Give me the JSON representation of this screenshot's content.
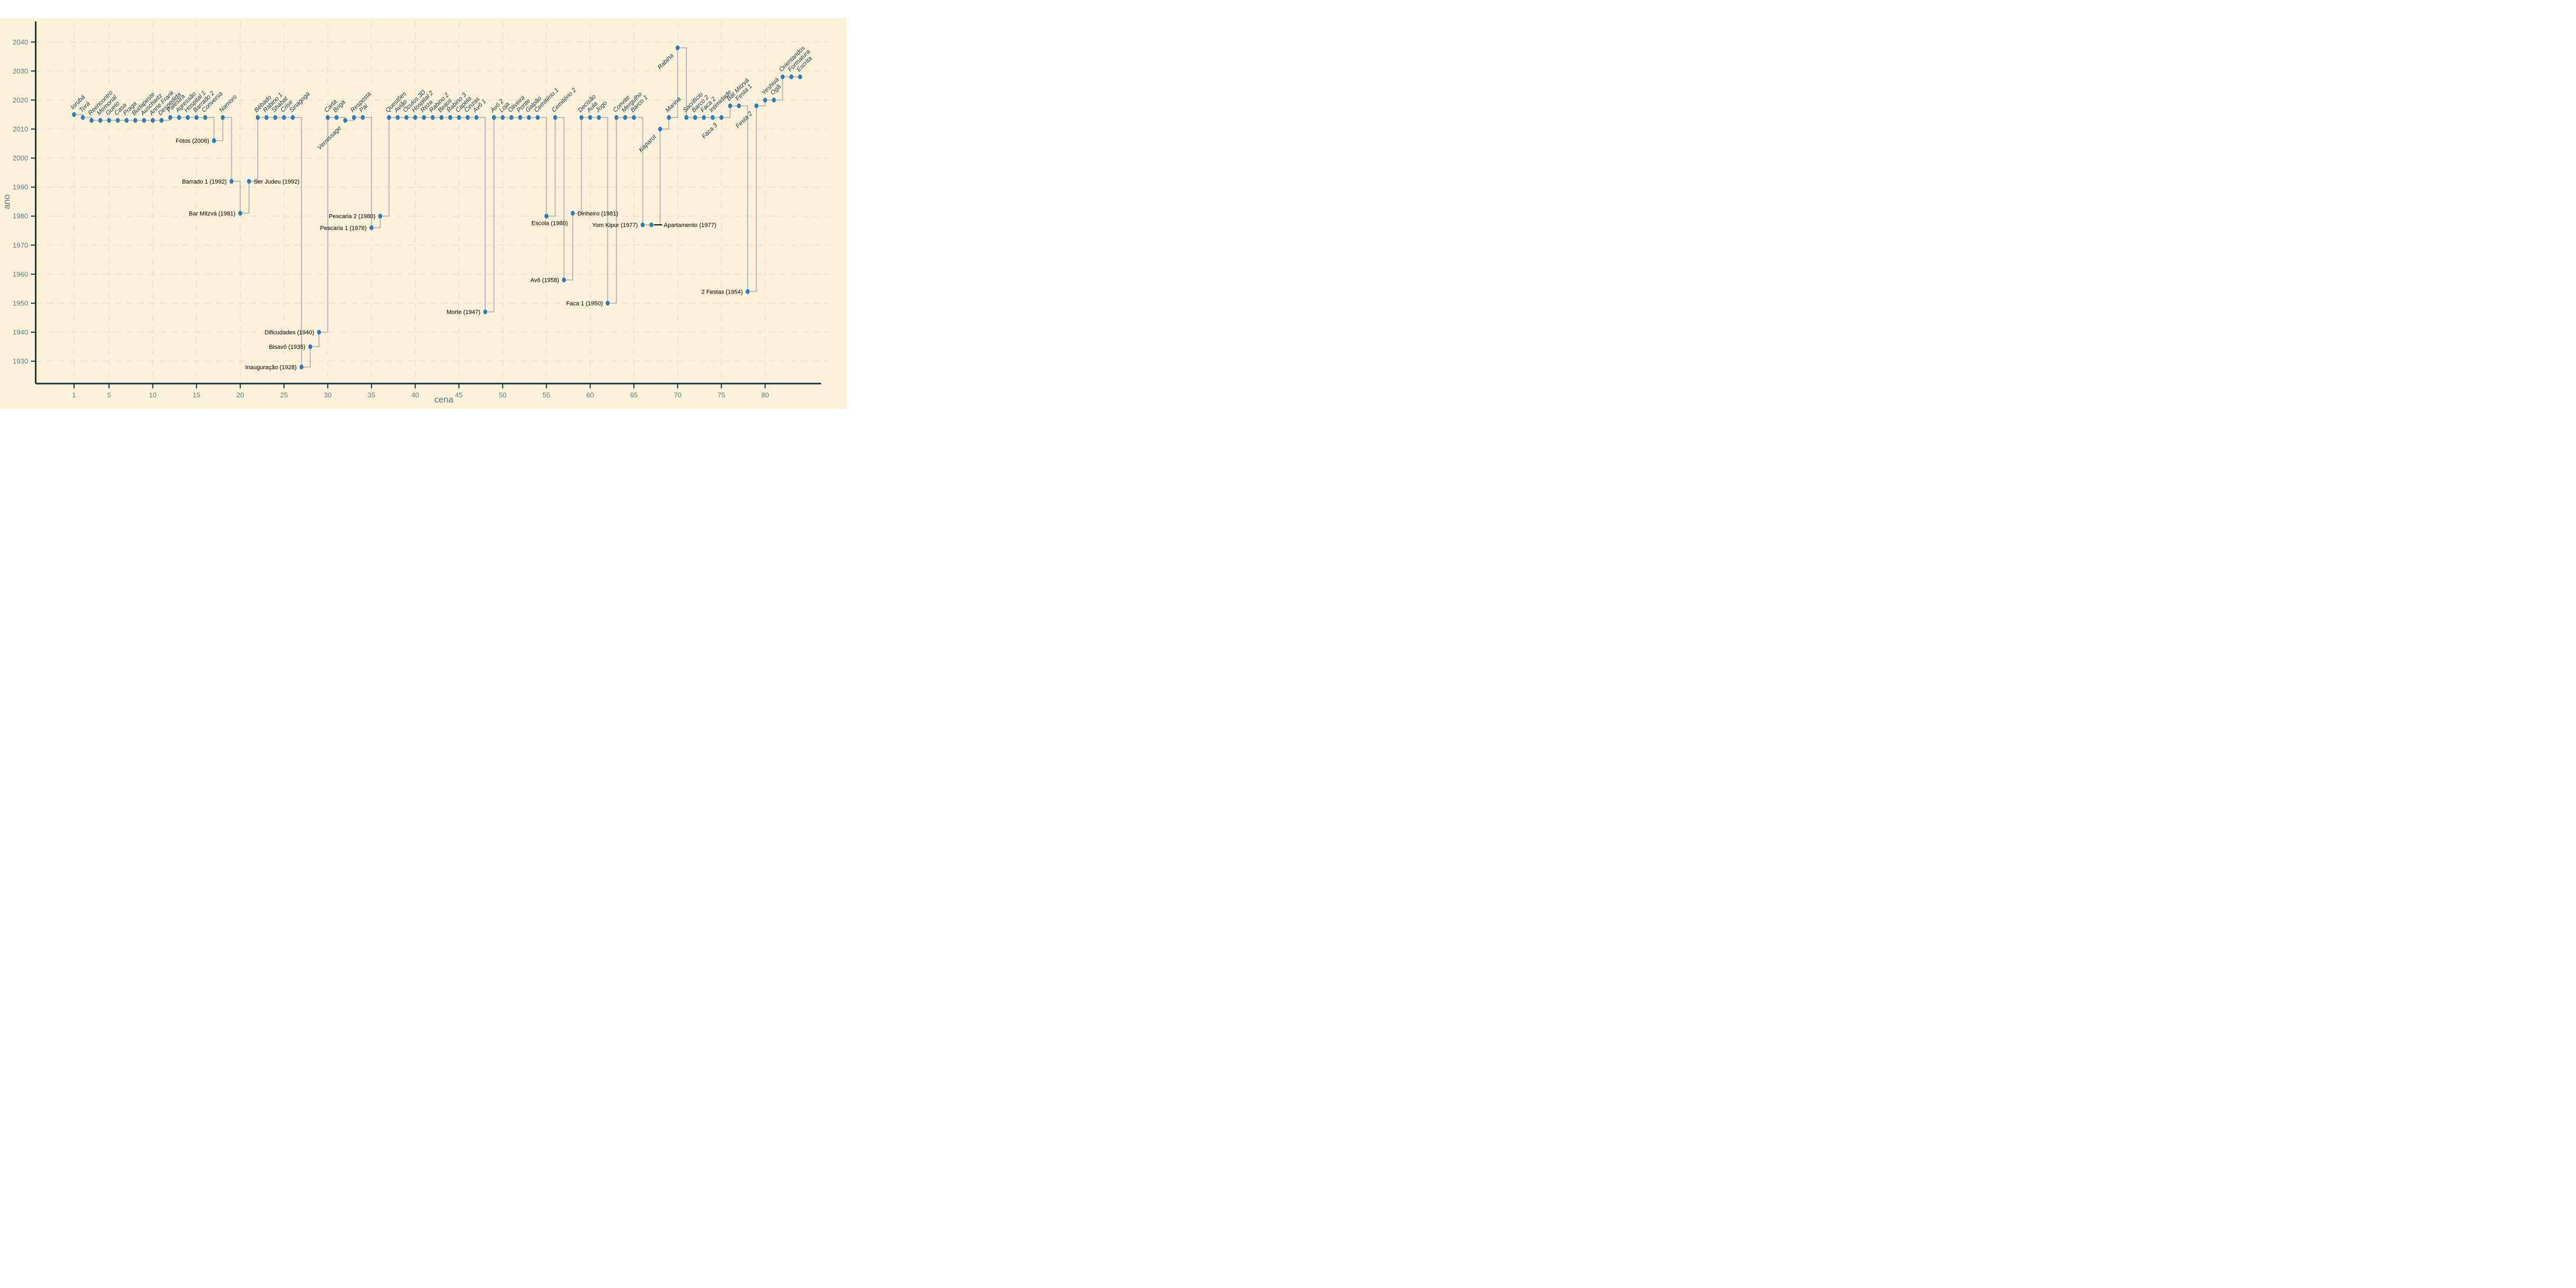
{
  "axes": {
    "x_title": "cena",
    "y_title": "ano"
  },
  "colors": {
    "page_background": "#ffffff",
    "panel_background": "#faf1d8",
    "gridline": "#e7e1cd",
    "axis_line": "#16384a",
    "tick_label": "#5f7d8c",
    "axis_title": "#567682",
    "point": "#2b7cbd",
    "step_line": "#b9b9b9",
    "scene_label": "#14384d",
    "annotation_text": "#000000"
  },
  "chart_data": {
    "type": "scatter",
    "subtype": "step-after-connected-scatter",
    "title": "",
    "xlabel": "cena",
    "ylabel": "ano",
    "xlim": [
      -1.5,
      88
    ],
    "ylim": [
      1925,
      2045
    ],
    "grid": true,
    "grid_style": "dashed",
    "legend": "none",
    "x_ticks": [
      1,
      5,
      10,
      15,
      20,
      25,
      30,
      35,
      40,
      45,
      50,
      55,
      60,
      65,
      70,
      75,
      80
    ],
    "y_ticks": [
      1930,
      1940,
      1950,
      1960,
      1970,
      1980,
      1990,
      2000,
      2010,
      2020,
      2030,
      2040
    ],
    "annotation_format": "label (year)",
    "label_placement_legend": {
      "diag": "italic label rotated 45deg above-right of point, no year shown",
      "diagDown": "italic label rotated 45deg below-left of point, no year shown",
      "left": "black 'label (year)' text left of point",
      "right": "black 'label (year)' text right of point",
      "below": "black 'label (year)' text centered below point",
      "rightLeader": "black 'label (year)' text right of point with black leader line"
    },
    "points": [
      {
        "x": 1,
        "label": "Iorubá",
        "year": 2015,
        "anno": "diag"
      },
      {
        "x": 2,
        "label": "Torá",
        "year": 2014,
        "anno": "diag"
      },
      {
        "x": 3,
        "label": "Reencontro",
        "year": 2013,
        "anno": "diag"
      },
      {
        "x": 4,
        "label": "Memorial",
        "year": 2013,
        "anno": "diag"
      },
      {
        "x": 5,
        "label": "Gueto",
        "year": 2013,
        "anno": "diag"
      },
      {
        "x": 6,
        "label": "Casa",
        "year": 2013,
        "anno": "diag"
      },
      {
        "x": 7,
        "label": "Praga",
        "year": 2013,
        "anno": "diag"
      },
      {
        "x": 8,
        "label": "Budapeste",
        "year": 2013,
        "anno": "diag"
      },
      {
        "x": 9,
        "label": "Auschwitz",
        "year": 2013,
        "anno": "diag"
      },
      {
        "x": 10,
        "label": "Anne Frank",
        "year": 2013,
        "anno": "diag"
      },
      {
        "x": 11,
        "label": "Despedida",
        "year": 2013,
        "anno": "diag"
      },
      {
        "x": 12,
        "label": "Palestra",
        "year": 2014,
        "anno": "diag"
      },
      {
        "x": 13,
        "label": "Agressão",
        "year": 2014,
        "anno": "diag"
      },
      {
        "x": 14,
        "label": "Hospital 1",
        "year": 2014,
        "anno": "diag"
      },
      {
        "x": 15,
        "label": "Barrado 2",
        "year": 2014,
        "anno": "diag"
      },
      {
        "x": 16,
        "label": "Conversa",
        "year": 2014,
        "anno": "diag"
      },
      {
        "x": 17,
        "label": "Fotos",
        "year": 2006,
        "anno": "left"
      },
      {
        "x": 18,
        "label": "Namoro",
        "year": 2014,
        "anno": "diag"
      },
      {
        "x": 19,
        "label": "Barrado 1",
        "year": 1992,
        "anno": "left"
      },
      {
        "x": 20,
        "label": "Bar Mitzvá",
        "year": 1981,
        "anno": "left"
      },
      {
        "x": 21,
        "label": "Ser Judeu",
        "year": 1992,
        "anno": "right"
      },
      {
        "x": 22,
        "label": "Bêbado",
        "year": 2014,
        "anno": "diag"
      },
      {
        "x": 23,
        "label": "Rabino 1",
        "year": 2014,
        "anno": "diag"
      },
      {
        "x": 24,
        "label": "Shabat",
        "year": 2014,
        "anno": "diag"
      },
      {
        "x": 25,
        "label": "Crise",
        "year": 2014,
        "anno": "diag"
      },
      {
        "x": 26,
        "label": "Sinagoga",
        "year": 2014,
        "anno": "diag"
      },
      {
        "x": 27,
        "label": "Inauguração",
        "year": 1928,
        "anno": "left"
      },
      {
        "x": 28,
        "label": "Bisavô",
        "year": 1935,
        "anno": "left"
      },
      {
        "x": 29,
        "label": "Dificudades",
        "year": 1940,
        "anno": "left"
      },
      {
        "x": 30,
        "label": "Carta",
        "year": 2014,
        "anno": "diag"
      },
      {
        "x": 31,
        "label": "Briga",
        "year": 2014,
        "anno": "diag"
      },
      {
        "x": 32,
        "label": "Vernissage",
        "year": 2013,
        "anno": "diagDown"
      },
      {
        "x": 33,
        "label": "Resposta",
        "year": 2014,
        "anno": "diag"
      },
      {
        "x": 34,
        "label": "Pai",
        "year": 2014,
        "anno": "diag"
      },
      {
        "x": 35,
        "label": "Pescaria 1",
        "year": 1976,
        "anno": "left"
      },
      {
        "x": 36,
        "label": "Pescaria 2",
        "year": 1980,
        "anno": "left"
      },
      {
        "x": 37,
        "label": "Questões",
        "year": 2014,
        "anno": "diag"
      },
      {
        "x": 38,
        "label": "Avião",
        "year": 2014,
        "anno": "diag"
      },
      {
        "x": 39,
        "label": "Óculos 3D",
        "year": 2014,
        "anno": "diag"
      },
      {
        "x": 40,
        "label": "Hospital 2",
        "year": 2014,
        "anno": "diag"
      },
      {
        "x": 41,
        "label": "Reza",
        "year": 2014,
        "anno": "diag"
      },
      {
        "x": 42,
        "label": "Rabino 2",
        "year": 2014,
        "anno": "diag"
      },
      {
        "x": 43,
        "label": "Beijos",
        "year": 2014,
        "anno": "diag"
      },
      {
        "x": 44,
        "label": "Rabino 3",
        "year": 2014,
        "anno": "diag"
      },
      {
        "x": 45,
        "label": "Capela",
        "year": 2014,
        "anno": "diag"
      },
      {
        "x": 46,
        "label": "Cinzas",
        "year": 2014,
        "anno": "diag"
      },
      {
        "x": 47,
        "label": "Avô 1",
        "year": 2014,
        "anno": "diag"
      },
      {
        "x": 48,
        "label": "Morte",
        "year": 1947,
        "anno": "left"
      },
      {
        "x": 49,
        "label": "Avó 2",
        "year": 2014,
        "anno": "diag"
      },
      {
        "x": 50,
        "label": "Loja",
        "year": 2014,
        "anno": "diag"
      },
      {
        "x": 51,
        "label": "Oliveira",
        "year": 2014,
        "anno": "diag"
      },
      {
        "x": 52,
        "label": "Ponte",
        "year": 2014,
        "anno": "diag"
      },
      {
        "x": 53,
        "label": "Galpão",
        "year": 2014,
        "anno": "diag"
      },
      {
        "x": 54,
        "label": "Cemitério 1",
        "year": 2014,
        "anno": "diag"
      },
      {
        "x": 55,
        "label": "Escola",
        "year": 1980,
        "anno": "below"
      },
      {
        "x": 56,
        "label": "Cemitério 2",
        "year": 2014,
        "anno": "diag"
      },
      {
        "x": 57,
        "label": "Avô",
        "year": 1958,
        "anno": "left"
      },
      {
        "x": 58,
        "label": "Dinheiro",
        "year": 1981,
        "anno": "right"
      },
      {
        "x": 59,
        "label": "Decisão",
        "year": 2014,
        "anno": "diag"
      },
      {
        "x": 60,
        "label": "Aula",
        "year": 2014,
        "anno": "diag"
      },
      {
        "x": 61,
        "label": "Jogo",
        "year": 2014,
        "anno": "diag"
      },
      {
        "x": 62,
        "label": "Faca 1",
        "year": 1950,
        "anno": "left"
      },
      {
        "x": 63,
        "label": "Convite",
        "year": 2014,
        "anno": "diag"
      },
      {
        "x": 64,
        "label": "Mergulho",
        "year": 2014,
        "anno": "diag"
      },
      {
        "x": 65,
        "label": "Barco 1",
        "year": 2014,
        "anno": "diag"
      },
      {
        "x": 66,
        "label": "Yom Kipur",
        "year": 1977,
        "anno": "left"
      },
      {
        "x": 67,
        "label": "Apartamento",
        "year": 1977,
        "anno": "rightLeader"
      },
      {
        "x": 68,
        "label": "Kaparot",
        "year": 2010,
        "anno": "diagDown"
      },
      {
        "x": 69,
        "label": "Marina",
        "year": 2014,
        "anno": "diag"
      },
      {
        "x": 70,
        "label": "Rabina",
        "year": 2038,
        "anno": "diagDown"
      },
      {
        "x": 71,
        "label": "Sacrifício",
        "year": 2014,
        "anno": "diag"
      },
      {
        "x": 72,
        "label": "Barco 2",
        "year": 2014,
        "anno": "diag"
      },
      {
        "x": 73,
        "label": "Faca 2",
        "year": 2014,
        "anno": "diag"
      },
      {
        "x": 74,
        "label": "Intimidade",
        "year": 2014,
        "anno": "diag"
      },
      {
        "x": 75,
        "label": "Faca 3",
        "year": 2014,
        "anno": "diagDown"
      },
      {
        "x": 76,
        "label": "Bat Mitzvá",
        "year": 2018,
        "anno": "diag"
      },
      {
        "x": 77,
        "label": "Festa 1",
        "year": 2018,
        "anno": "diag"
      },
      {
        "x": 78,
        "label": "2 Festas",
        "year": 1954,
        "anno": "left"
      },
      {
        "x": 79,
        "label": "Festa 2",
        "year": 2018,
        "anno": "diagDown"
      },
      {
        "x": 80,
        "label": "Yeshivá",
        "year": 2020,
        "anno": "diag"
      },
      {
        "x": 81,
        "label": "Ogã",
        "year": 2020,
        "anno": "diag"
      },
      {
        "x": 82,
        "label": "Orientandos",
        "year": 2028,
        "anno": "diag"
      },
      {
        "x": 83,
        "label": "Formatura",
        "year": 2028,
        "anno": "diag"
      },
      {
        "x": 84,
        "label": "Escrita",
        "year": 2028,
        "anno": "diag"
      }
    ]
  }
}
